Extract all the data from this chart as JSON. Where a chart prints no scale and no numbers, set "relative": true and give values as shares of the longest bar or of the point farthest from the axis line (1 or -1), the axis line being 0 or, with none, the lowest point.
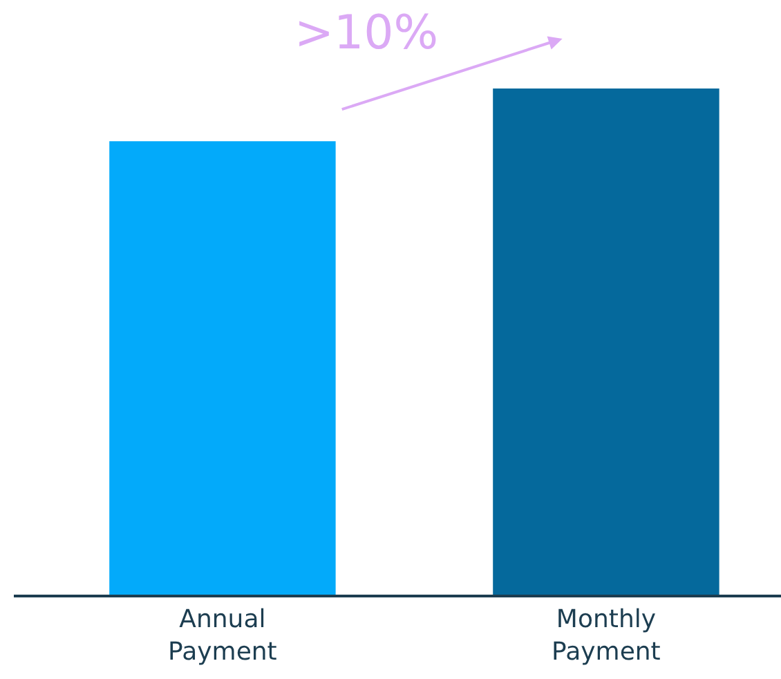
{
  "chart_data": {
    "type": "bar",
    "relative": true,
    "categories": [
      "Annual Payment",
      "Monthly Payment"
    ],
    "values": [
      0.896,
      1
    ],
    "colors": [
      "#03aafa",
      "#05699c"
    ],
    "annotations": [
      ">10%"
    ]
  }
}
